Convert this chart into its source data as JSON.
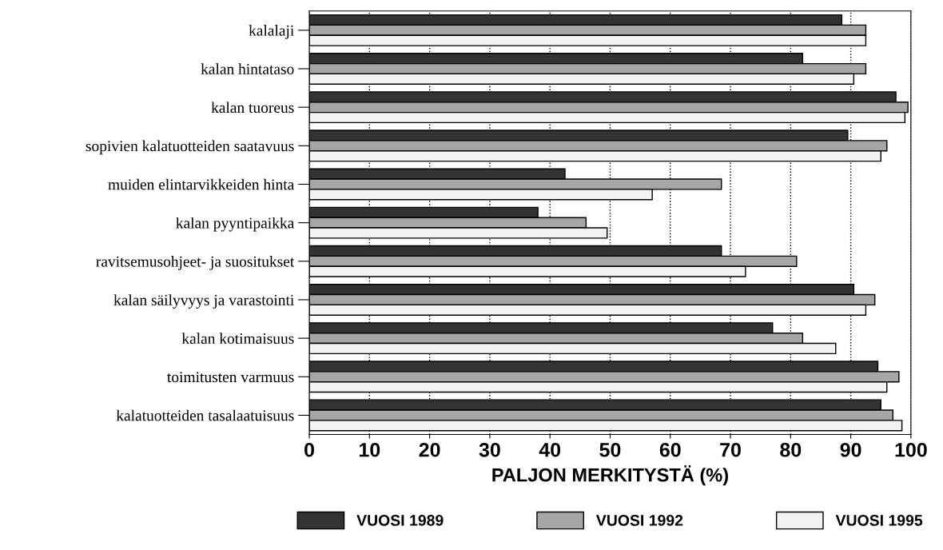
{
  "chart_data": {
    "type": "bar",
    "orientation": "horizontal",
    "xlabel": "PALJON MERKITYSTÄ (%)",
    "categories": [
      "kalalaji",
      "kalan hintataso",
      "kalan tuoreus",
      "sopivien kalatuotteiden saatavuus",
      "muiden elintarvikkeiden hinta",
      "kalan pyyntipaikka",
      "ravitsemusohjeet- ja suositukset",
      "kalan säilyvyys ja varastointi",
      "kalan kotimaisuus",
      "toimitusten varmuus",
      "kalatuotteiden tasalaatuisuus"
    ],
    "series": [
      {
        "name": "VUOSI 1989",
        "color": "#333333",
        "values": [
          88.5,
          82,
          97.5,
          89.5,
          42.5,
          38,
          68.5,
          90.5,
          77,
          94.5,
          95
        ]
      },
      {
        "name": "VUOSI 1992",
        "color": "#a6a6a6",
        "values": [
          92.5,
          92.5,
          99.5,
          96,
          68.5,
          46,
          81,
          94,
          82,
          98,
          97
        ]
      },
      {
        "name": "VUOSI 1995",
        "color": "#f2f2f2",
        "values": [
          92.5,
          90.5,
          99,
          95,
          57,
          49.5,
          72.5,
          92.5,
          87.5,
          96,
          98.5
        ]
      }
    ],
    "xlim": [
      0,
      100
    ],
    "xticks": [
      0,
      10,
      20,
      30,
      40,
      50,
      60,
      70,
      80,
      90,
      100
    ],
    "grid": "x",
    "legend": "bottom"
  }
}
